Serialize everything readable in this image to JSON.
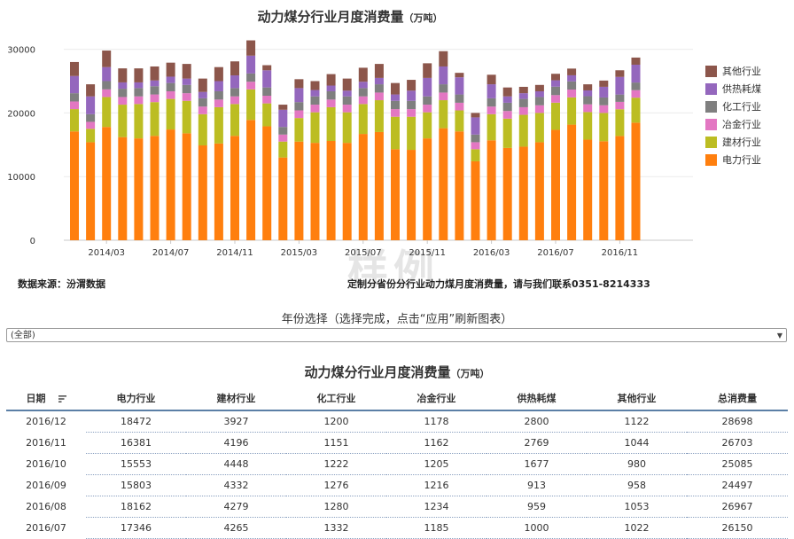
{
  "title": "动力煤分行业月度消费量",
  "title_unit": "（万吨）",
  "source": "数据来源：汾渭数据",
  "contact": "定制分省份分行业动力煤月度消费量，请与我们联系0351-8214333",
  "watermark": "样例",
  "year_selector": {
    "label": "年份选择（选择完成，点击“应用”刷新图表）",
    "value": "(全部)"
  },
  "colors": {
    "电力行业": "#ff7f0e",
    "建材行业": "#bcbd22",
    "冶金行业": "#e377c2",
    "化工行业": "#7f7f7f",
    "供热耗煤": "#9467bd",
    "其他行业": "#8c564b"
  },
  "legend": [
    "其他行业",
    "供热耗煤",
    "化工行业",
    "冶金行业",
    "建材行业",
    "电力行业"
  ],
  "chart_data": {
    "type": "bar",
    "stacked": true,
    "x_ticks": [
      "2014/03",
      "2014/07",
      "2014/11",
      "2015/03",
      "2015/07",
      "2015/11",
      "2016/03",
      "2016/07",
      "2016/11"
    ],
    "y_ticks": [
      0,
      10000,
      20000,
      30000
    ],
    "ylim": [
      0,
      30500
    ],
    "categories": [
      "2014/01",
      "2014/02",
      "2014/03",
      "2014/04",
      "2014/05",
      "2014/06",
      "2014/07",
      "2014/08",
      "2014/09",
      "2014/10",
      "2014/11",
      "2014/12",
      "2015/01",
      "2015/02",
      "2015/03",
      "2015/04",
      "2015/05",
      "2015/06",
      "2015/07",
      "2015/08",
      "2015/09",
      "2015/10",
      "2015/11",
      "2015/12",
      "2016/01",
      "2016/02",
      "2016/03",
      "2016/04",
      "2016/05",
      "2016/06",
      "2016/07",
      "2016/08",
      "2016/09",
      "2016/10",
      "2016/11",
      "2016/12"
    ],
    "series": [
      {
        "name": "电力行业",
        "values": [
          17100,
          15400,
          17800,
          16200,
          16000,
          16400,
          17400,
          16800,
          14900,
          15200,
          16400,
          18900,
          17900,
          13000,
          15500,
          15300,
          15600,
          15300,
          16700,
          17000,
          14300,
          14200,
          16000,
          17600,
          17100,
          12400,
          15700,
          14500,
          14700,
          15400,
          17346,
          18162,
          15803,
          15553,
          16381,
          18472
        ]
      },
      {
        "name": "建材行业",
        "values": [
          3500,
          2100,
          4700,
          5100,
          5400,
          5300,
          4800,
          5100,
          4900,
          5700,
          5000,
          4800,
          3600,
          2500,
          3700,
          4800,
          5300,
          4800,
          4700,
          5000,
          5100,
          5200,
          4100,
          4400,
          3300,
          1900,
          4100,
          4600,
          5000,
          4600,
          4265,
          4279,
          4332,
          4448,
          4196,
          3927
        ]
      },
      {
        "name": "冶金行业",
        "values": [
          1200,
          1100,
          1200,
          1200,
          1200,
          1200,
          1200,
          1200,
          1200,
          1200,
          1200,
          1200,
          1200,
          1100,
          1200,
          1200,
          1200,
          1200,
          1200,
          1200,
          1200,
          1200,
          1200,
          1200,
          1200,
          1100,
          1200,
          1200,
          1200,
          1200,
          1185,
          1234,
          1216,
          1205,
          1162,
          1178
        ]
      },
      {
        "name": "化工行业",
        "values": [
          1300,
          1200,
          1300,
          1300,
          1300,
          1300,
          1300,
          1300,
          1300,
          1300,
          1300,
          1300,
          1300,
          1200,
          1300,
          1300,
          1300,
          1300,
          1300,
          1300,
          1300,
          1300,
          1300,
          1300,
          1300,
          1200,
          1300,
          1300,
          1300,
          1300,
          1332,
          1280,
          1276,
          1222,
          1151,
          1200
        ]
      },
      {
        "name": "供热耗煤",
        "values": [
          2700,
          2800,
          2200,
          1000,
          900,
          900,
          1000,
          1000,
          1000,
          1600,
          2000,
          2800,
          2700,
          2700,
          2200,
          1000,
          900,
          900,
          1000,
          1000,
          1000,
          1600,
          2900,
          2800,
          2700,
          2700,
          2200,
          1000,
          900,
          900,
          1000,
          959,
          913,
          1677,
          2769,
          2800
        ]
      },
      {
        "name": "其他行业",
        "values": [
          2200,
          1900,
          2600,
          2200,
          2200,
          2200,
          2200,
          2300,
          2100,
          2200,
          2200,
          2400,
          800,
          800,
          1400,
          1400,
          1800,
          1900,
          2200,
          2200,
          1800,
          1700,
          2300,
          2400,
          700,
          700,
          1500,
          1400,
          1000,
          1000,
          1022,
          1053,
          958,
          980,
          1044,
          1122
        ]
      }
    ]
  },
  "table": {
    "title": "动力煤分行业月度消费量",
    "title_unit": "（万吨）",
    "headers": [
      "日期",
      "电力行业",
      "建材行业",
      "化工行业",
      "冶金行业",
      "供热耗煤",
      "其他行业",
      "总消费量"
    ],
    "rows": [
      [
        "2016/12",
        "18472",
        "3927",
        "1200",
        "1178",
        "2800",
        "1122",
        "28698"
      ],
      [
        "2016/11",
        "16381",
        "4196",
        "1151",
        "1162",
        "2769",
        "1044",
        "26703"
      ],
      [
        "2016/10",
        "15553",
        "4448",
        "1222",
        "1205",
        "1677",
        "980",
        "25085"
      ],
      [
        "2016/09",
        "15803",
        "4332",
        "1276",
        "1216",
        "913",
        "958",
        "24497"
      ],
      [
        "2016/08",
        "18162",
        "4279",
        "1280",
        "1234",
        "959",
        "1053",
        "26967"
      ],
      [
        "2016/07",
        "17346",
        "4265",
        "1332",
        "1185",
        "1000",
        "1022",
        "26150"
      ]
    ]
  }
}
